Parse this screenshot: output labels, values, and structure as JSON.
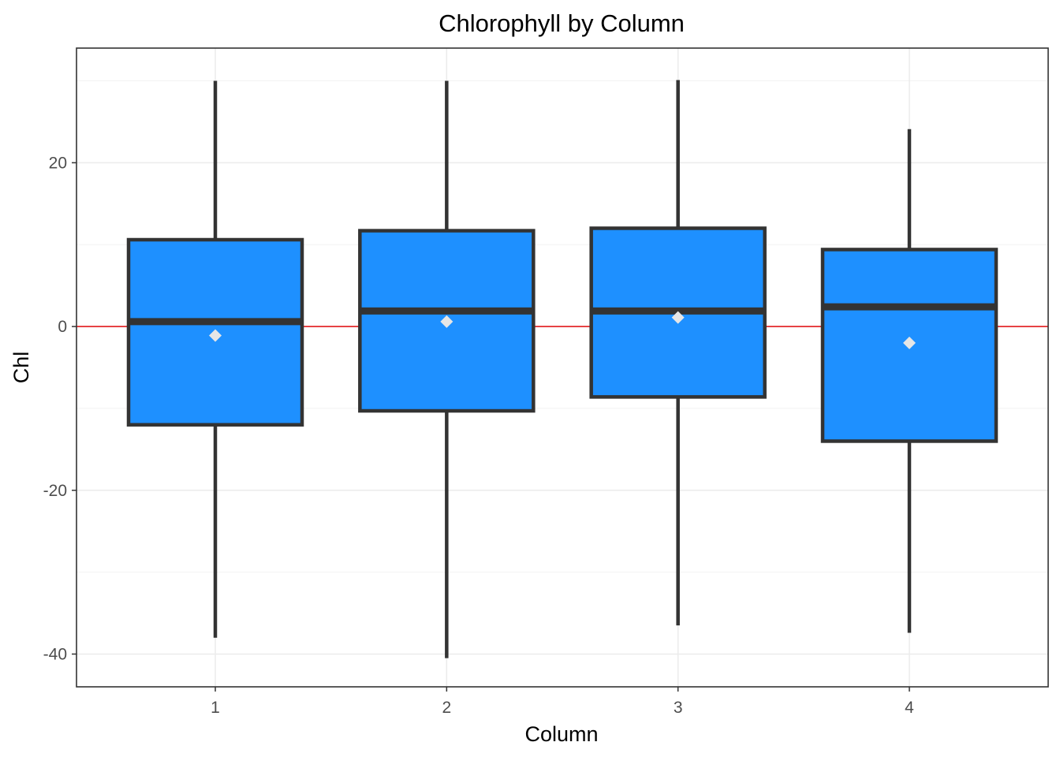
{
  "chart_data": {
    "type": "box",
    "title": "Chlorophyll by Column",
    "xlabel": "Column",
    "ylabel": "Chl",
    "categories": [
      "1",
      "2",
      "3",
      "4"
    ],
    "ylim": [
      -44,
      34
    ],
    "y_ticks": [
      20,
      0,
      -20,
      -40
    ],
    "y_tick_labels": [
      "20",
      "0",
      "-20",
      "-40"
    ],
    "grid": true,
    "reference_line": {
      "y": 0,
      "color": "#e31a1c"
    },
    "box_fill": "#1e90ff",
    "box_stroke": "#333333",
    "mean_marker_color": "#e6e6e6",
    "boxes": [
      {
        "category": "1",
        "whisker_low": -38.0,
        "q1": -12.0,
        "median": 0.6,
        "q3": 10.6,
        "whisker_high": 30.0,
        "mean": -1.1
      },
      {
        "category": "2",
        "whisker_low": -40.5,
        "q1": -10.3,
        "median": 1.9,
        "q3": 11.7,
        "whisker_high": 30.0,
        "mean": 0.6
      },
      {
        "category": "3",
        "whisker_low": -36.5,
        "q1": -8.6,
        "median": 1.9,
        "q3": 12.0,
        "whisker_high": 30.1,
        "mean": 1.1
      },
      {
        "category": "4",
        "whisker_low": -37.4,
        "q1": -14.0,
        "median": 2.4,
        "q3": 9.4,
        "whisker_high": 24.1,
        "mean": -2.0
      }
    ]
  }
}
